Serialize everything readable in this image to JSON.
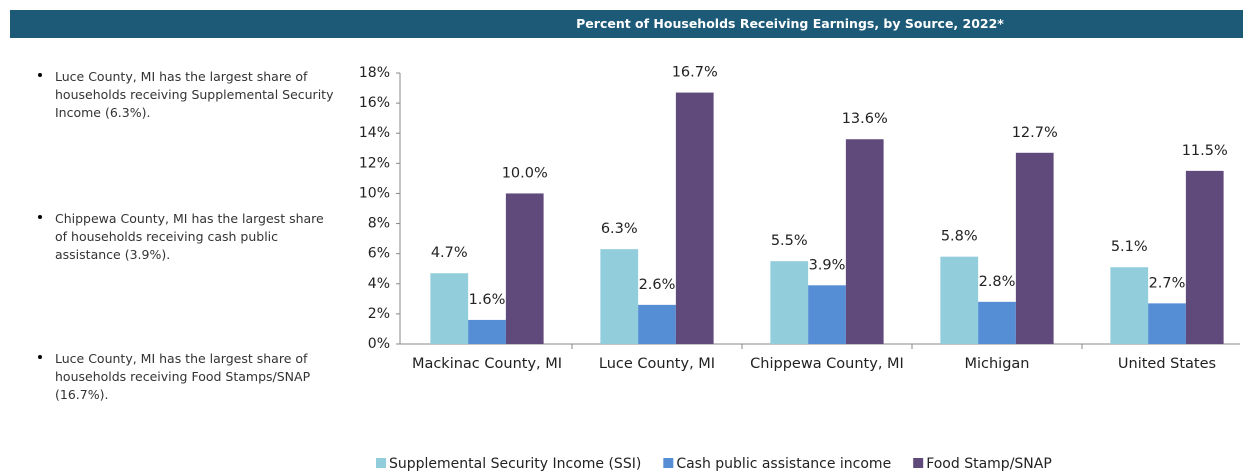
{
  "chart_data": {
    "type": "bar",
    "title": "Percent of Households Receiving Earnings, by Source, 2022*",
    "categories": [
      "Mackinac County, MI",
      "Luce County, MI",
      "Chippewa County, MI",
      "Michigan",
      "United States"
    ],
    "series": [
      {
        "name": "Supplemental Security Income (SSI)",
        "color": "#92cddc",
        "values": [
          4.7,
          6.3,
          5.5,
          5.8,
          5.1
        ],
        "value_labels": [
          "4.7%",
          "6.3%",
          "5.5%",
          "5.8%",
          "5.1%"
        ]
      },
      {
        "name": "Cash public assistance income",
        "color": "#558ed5",
        "values": [
          1.6,
          2.6,
          3.9,
          2.8,
          2.7
        ],
        "value_labels": [
          "1.6%",
          "2.6%",
          "3.9%",
          "2.8%",
          "2.7%"
        ]
      },
      {
        "name": "Food Stamp/SNAP",
        "color": "#604a7b",
        "values": [
          10.0,
          16.7,
          13.6,
          12.7,
          11.5
        ],
        "value_labels": [
          "10.0%",
          "16.7%",
          "13.6%",
          "12.7%",
          "11.5%"
        ]
      }
    ],
    "ylim": [
      0,
      18
    ],
    "yticks": [
      {
        "value": 0,
        "label": "0%"
      },
      {
        "value": 2,
        "label": "2%"
      },
      {
        "value": 4,
        "label": "4%"
      },
      {
        "value": 6,
        "label": "6%"
      },
      {
        "value": 8,
        "label": "8%"
      },
      {
        "value": 10,
        "label": "10%"
      },
      {
        "value": 12,
        "label": "12%"
      },
      {
        "value": 14,
        "label": "14%"
      },
      {
        "value": 16,
        "label": "16%"
      },
      {
        "value": 18,
        "label": "18%"
      }
    ],
    "grid": false,
    "legend": "bottom"
  },
  "bullets": [
    "Luce County, MI has the largest share of households receiving Supplemental Security Income (6.3%).",
    "Chippewa County, MI has the largest share of households receiving cash public assistance (3.9%).",
    "Luce County, MI has the largest share of households receiving Food Stamps/SNAP (16.7%)."
  ]
}
